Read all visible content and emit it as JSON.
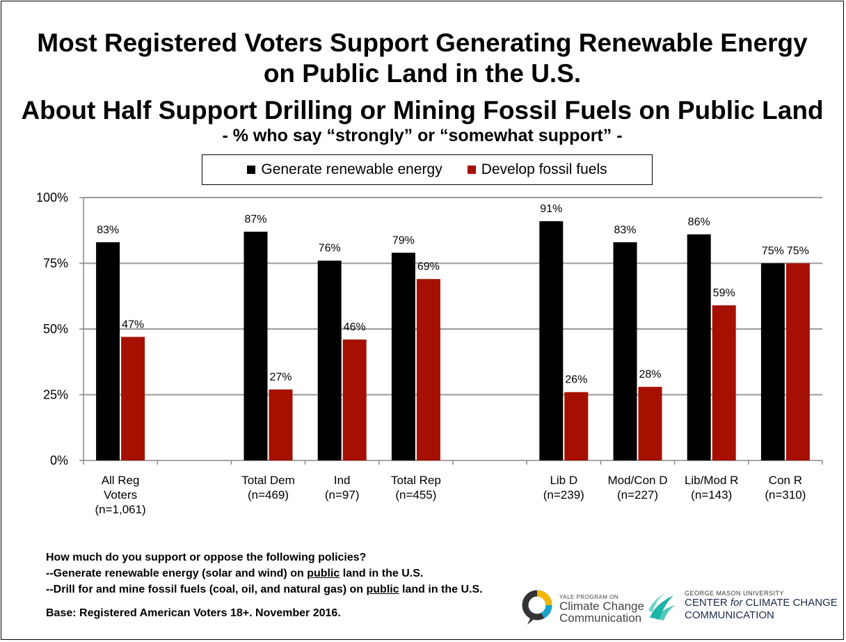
{
  "title_lines": [
    "Most Registered Voters Support Generating Renewable Energy",
    "on Public Land in the U.S.",
    "About Half Support Drilling or Mining Fossil Fuels on Public Land"
  ],
  "subtitle": "- % who say “strongly” or “somewhat support” -",
  "chart_data": {
    "type": "bar",
    "title": "Most Registered Voters Support Generating Renewable Energy on Public Land in the U.S. About Half Support Drilling or Mining Fossil Fuels on Public Land",
    "subtitle": "- % who say “strongly” or “somewhat support” -",
    "xlabel": "",
    "ylabel": "",
    "ylim": [
      0,
      100
    ],
    "yticks": [
      "0%",
      "25%",
      "50%",
      "75%",
      "100%"
    ],
    "grid": true,
    "legend_position": "top-center",
    "categories": [
      [
        "All Reg",
        "Voters",
        "(n=1,061)"
      ],
      [
        "",
        ""
      ],
      [
        "Total Dem",
        "(n=469)"
      ],
      [
        "Ind",
        "(n=97)"
      ],
      [
        "Total Rep",
        "(n=455)"
      ],
      [
        "",
        ""
      ],
      [
        "Lib D",
        "(n=239)"
      ],
      [
        "Mod/Con D",
        "(n=227)"
      ],
      [
        "Lib/Mod R",
        "(n=143)"
      ],
      [
        "Con R",
        "(n=310)"
      ]
    ],
    "series": [
      {
        "name": "Generate renewable energy",
        "color": "#000000",
        "values": [
          83,
          null,
          87,
          76,
          79,
          null,
          91,
          83,
          86,
          75
        ],
        "labels": [
          "83%",
          "",
          "87%",
          "76%",
          "79%",
          "",
          "91%",
          "83%",
          "86%",
          "75%"
        ]
      },
      {
        "name": "Develop fossil fuels",
        "color": "#a61000",
        "values": [
          47,
          null,
          27,
          46,
          69,
          null,
          26,
          28,
          59,
          75
        ],
        "labels": [
          "47%",
          "",
          "27%",
          "46%",
          "69%",
          "",
          "26%",
          "28%",
          "59%",
          "75%"
        ]
      }
    ]
  },
  "notes": {
    "question": "How much do you support or oppose the following policies?",
    "item1_pre": "--Generate renewable energy (solar and wind) on ",
    "item1_ul": "public",
    "item1_post": " land in the U.S.",
    "item2_pre": "--Drill for and mine fossil fuels (coal, oil, and natural gas) on ",
    "item2_ul": "public",
    "item2_post": " land in the U.S.",
    "base": "Base: Registered American Voters 18+. November 2016."
  },
  "logos": {
    "yale_small": "YALE PROGRAM ON",
    "yale_line1": "Climate Change",
    "yale_line2": "Communication",
    "gmu_small": "GEORGE MASON UNIVERSITY",
    "gmu_line1_pre": "CENTER ",
    "gmu_line1_for": "for",
    "gmu_line1_post": " CLIMATE CHANGE",
    "gmu_line2": "COMMUNICATION"
  }
}
